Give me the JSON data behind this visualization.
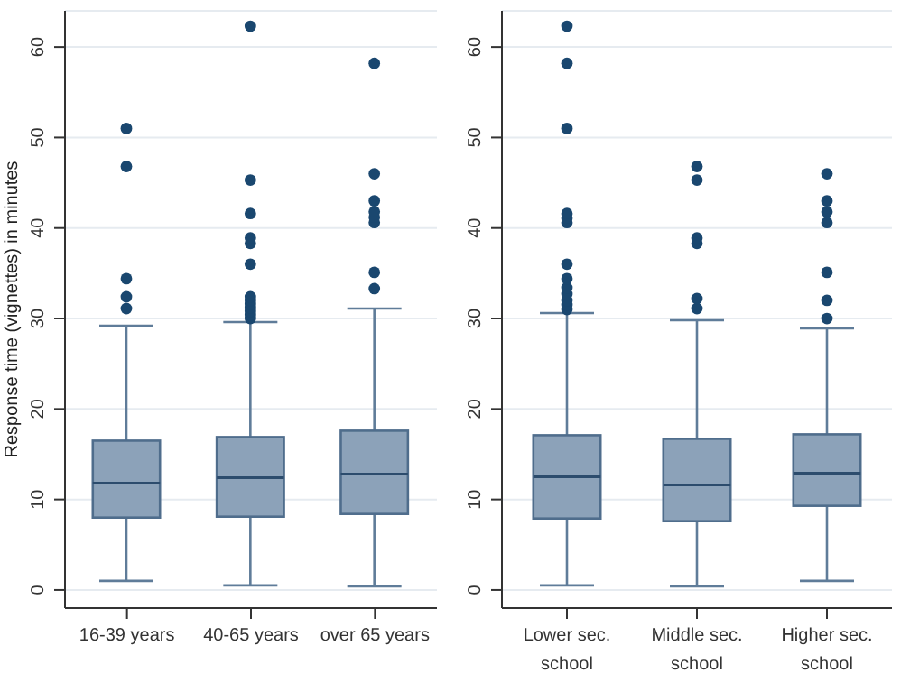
{
  "chart_data": [
    {
      "type": "box",
      "ylabel": "Response time (vignettes) in minutes",
      "categories": [
        "16-39 years",
        "40-65 years",
        "over 65 years"
      ],
      "color": "#8ca2b9",
      "ylim": [
        -2,
        64
      ],
      "yticks": [
        0,
        10,
        20,
        30,
        40,
        50,
        60
      ],
      "grid": "y",
      "boxes": [
        {
          "low": 1,
          "q1": 8,
          "median": 11.8,
          "q3": 16.5,
          "high": 29.2,
          "outliers": [
            31.1,
            32.4,
            34.4,
            46.8,
            51
          ]
        },
        {
          "low": 0.5,
          "q1": 8.1,
          "median": 12.4,
          "q3": 16.9,
          "high": 29.6,
          "outliers": [
            30,
            30.4,
            30.8,
            31.2,
            31.6,
            32,
            32.4,
            36,
            38.3,
            38.9,
            41.6,
            45.3,
            62.3
          ]
        },
        {
          "low": 0.4,
          "q1": 8.4,
          "median": 12.8,
          "q3": 17.6,
          "high": 31.1,
          "outliers": [
            33.3,
            35.1,
            40.6,
            41.2,
            41.8,
            43,
            46,
            58.2
          ]
        }
      ]
    },
    {
      "type": "box",
      "categories": [
        "Lower sec. school",
        "Middle sec. school",
        "Higher sec. school"
      ],
      "color": "#8ca2b9",
      "ylim": [
        -2,
        64
      ],
      "yticks": [
        0,
        10,
        20,
        30,
        40,
        50,
        60
      ],
      "grid": "y",
      "boxes": [
        {
          "low": 0.5,
          "q1": 7.9,
          "median": 12.5,
          "q3": 17.1,
          "high": 30.6,
          "outliers": [
            31,
            31.5,
            32,
            32.7,
            33.4,
            34.4,
            36,
            40.6,
            41.1,
            41.6,
            51,
            58.2,
            62.3
          ]
        },
        {
          "low": 0.4,
          "q1": 7.6,
          "median": 11.6,
          "q3": 16.7,
          "high": 29.8,
          "outliers": [
            31.1,
            32.2,
            38.3,
            38.9,
            45.3,
            46.8
          ]
        },
        {
          "low": 1,
          "q1": 9.3,
          "median": 12.9,
          "q3": 17.2,
          "high": 28.9,
          "outliers": [
            30,
            32,
            35.1,
            40.6,
            41.8,
            43,
            46
          ]
        }
      ]
    }
  ]
}
